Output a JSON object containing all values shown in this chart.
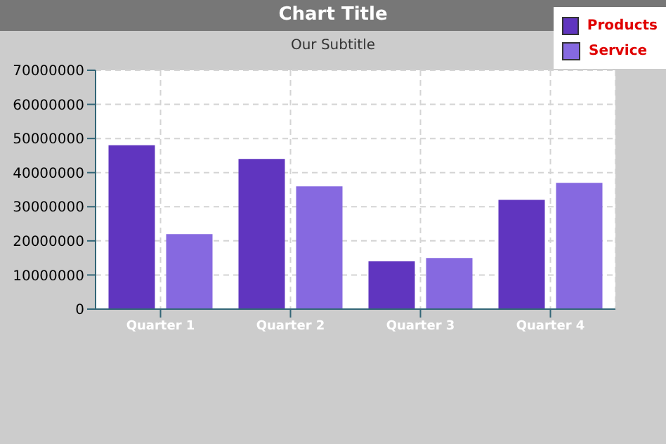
{
  "chart_data": {
    "type": "bar",
    "title": "Chart Title",
    "subtitle": "Our Subtitle",
    "categories": [
      "Quarter 1",
      "Quarter 2",
      "Quarter 3",
      "Quarter 4"
    ],
    "series": [
      {
        "name": "Products",
        "color": "#6035bf",
        "values": [
          48000000,
          44000000,
          14000000,
          32000000
        ]
      },
      {
        "name": "Service",
        "color": "#8669e0",
        "values": [
          22000000,
          36000000,
          15000000,
          37000000
        ]
      }
    ],
    "ylim": [
      0,
      70000000
    ],
    "yticks": [
      0,
      10000000,
      20000000,
      30000000,
      40000000,
      50000000,
      60000000,
      70000000
    ],
    "grid": true,
    "legend": "top right"
  }
}
